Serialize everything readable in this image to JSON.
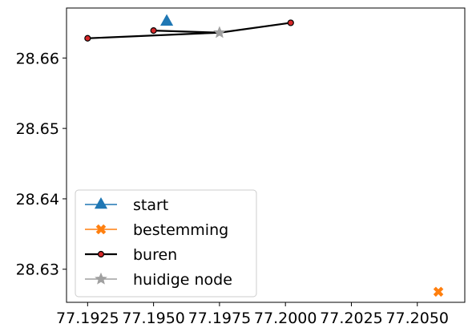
{
  "chart_data": {
    "type": "line",
    "title": "",
    "xlabel": "",
    "ylabel": "",
    "xlim": [
      77.1917,
      77.2068
    ],
    "ylim": [
      28.6253,
      28.6671
    ],
    "x_ticks": [
      77.1925,
      77.195,
      77.1975,
      77.2,
      77.2025,
      77.205
    ],
    "x_tick_labels": [
      "77.1925",
      "77.1950",
      "77.1975",
      "77.2000",
      "77.2025",
      "77.2050"
    ],
    "y_ticks": [
      28.63,
      28.64,
      28.65,
      28.66
    ],
    "y_tick_labels": [
      "28.63",
      "28.64",
      "28.65",
      "28.66"
    ],
    "grid": false,
    "legend_position": "lower-left",
    "series": [
      {
        "name": "start",
        "color": "#1f77b4",
        "marker": "triangle",
        "points": [
          [
            77.1955,
            28.6652
          ]
        ]
      },
      {
        "name": "bestemming",
        "color": "#ff7f0e",
        "marker": "x-cross",
        "points": [
          [
            77.2058,
            28.6268
          ]
        ]
      },
      {
        "name": "buren",
        "color": "#000000",
        "marker_face": "#d62728",
        "marker": "circle",
        "segments": [
          [
            [
              77.1925,
              28.6628
            ],
            [
              77.1975,
              28.6636
            ]
          ],
          [
            [
              77.195,
              28.6639
            ],
            [
              77.1975,
              28.6636
            ]
          ],
          [
            [
              77.2002,
              28.665
            ],
            [
              77.1975,
              28.6636
            ]
          ]
        ],
        "points": [
          [
            77.1925,
            28.6628
          ],
          [
            77.195,
            28.6639
          ],
          [
            77.2002,
            28.665
          ]
        ]
      },
      {
        "name": "huidige node",
        "color": "#a0a0a0",
        "marker": "star",
        "points": [
          [
            77.1975,
            28.6636
          ]
        ]
      }
    ]
  }
}
